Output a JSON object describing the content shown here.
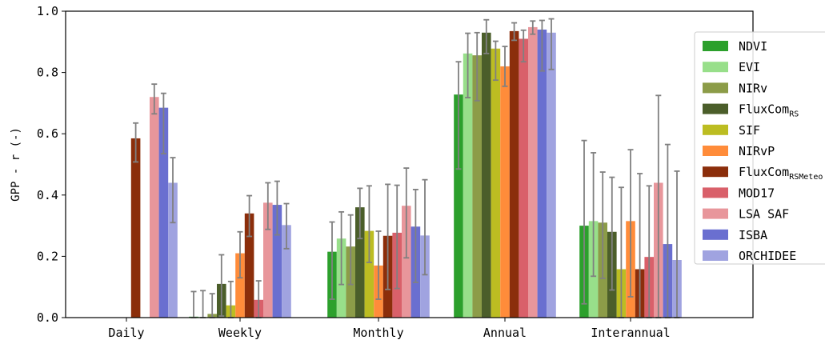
{
  "chart_data": {
    "type": "bar",
    "title": "",
    "xlabel": "",
    "ylabel": "GPP - r (-)",
    "ylim": [
      0.0,
      1.0
    ],
    "yticks": [
      "0.0",
      "0.2",
      "0.4",
      "0.6",
      "0.8",
      "1.0"
    ],
    "categories": [
      "Daily",
      "Weekly",
      "Monthly",
      "Annual",
      "Interannual"
    ],
    "legend_position": "right",
    "series": [
      {
        "name": "NDVI",
        "legend_label": "NDVI",
        "color": "#2ca02c",
        "values": [
          null,
          0.003,
          0.215,
          0.728,
          0.3
        ],
        "err_low": [
          null,
          0.0,
          0.06,
          0.485,
          0.045
        ],
        "err_high": [
          null,
          0.085,
          0.312,
          0.835,
          0.578
        ]
      },
      {
        "name": "EVI",
        "legend_label": "EVI",
        "color": "#98df8a",
        "values": [
          null,
          0.002,
          0.258,
          0.862,
          0.315
        ],
        "err_low": [
          null,
          0.0,
          0.108,
          0.718,
          0.135
        ],
        "err_high": [
          null,
          0.088,
          0.345,
          0.928,
          0.538
        ]
      },
      {
        "name": "NIRv",
        "legend_label": "NIRv",
        "color": "#8c9c48",
        "values": [
          null,
          0.012,
          0.232,
          0.856,
          0.31
        ],
        "err_low": [
          null,
          0.0,
          0.108,
          0.708,
          0.128
        ],
        "err_high": [
          null,
          0.078,
          0.335,
          0.93,
          0.475
        ]
      },
      {
        "name": "FluxComRS",
        "legend_label": "FluxCom",
        "legend_sub": "RS",
        "color": "#4b5e2a",
        "values": [
          null,
          0.11,
          0.36,
          0.93,
          0.28
        ],
        "err_low": [
          null,
          0.005,
          0.258,
          0.862,
          0.09
        ],
        "err_high": [
          null,
          0.205,
          0.422,
          0.972,
          0.458
        ]
      },
      {
        "name": "SIF",
        "legend_label": "SIF",
        "color": "#bcbd22",
        "values": [
          null,
          0.04,
          0.283,
          0.878,
          0.158
        ],
        "err_low": [
          null,
          0.0,
          0.18,
          0.775,
          0.0
        ],
        "err_high": [
          null,
          0.118,
          0.43,
          0.902,
          0.425
        ]
      },
      {
        "name": "NIRvP",
        "legend_label": "NIRvP",
        "color": "#ff8c3a",
        "values": [
          null,
          0.21,
          0.17,
          0.82,
          0.315
        ],
        "err_low": [
          null,
          0.13,
          0.06,
          0.755,
          0.068
        ],
        "err_high": [
          null,
          0.28,
          0.282,
          0.885,
          0.548
        ]
      },
      {
        "name": "FluxComRSMeteo",
        "legend_label": "FluxCom",
        "legend_sub": "RSMeteo",
        "color": "#8b2e0b",
        "values": [
          0.585,
          0.34,
          0.267,
          0.935,
          0.158
        ],
        "err_low": [
          0.508,
          0.265,
          0.092,
          0.905,
          0.0
        ],
        "err_high": [
          0.635,
          0.398,
          0.435,
          0.962,
          0.47
        ]
      },
      {
        "name": "MOD17",
        "legend_label": "MOD17",
        "color": "#d9606a",
        "values": [
          null,
          0.058,
          0.277,
          0.91,
          0.198
        ],
        "err_low": [
          null,
          0.0,
          0.095,
          0.835,
          0.0
        ],
        "err_high": [
          null,
          0.12,
          0.432,
          0.938,
          0.43
        ]
      },
      {
        "name": "LSA SAF",
        "legend_label": "LSA SAF",
        "color": "#e8969b",
        "values": [
          0.72,
          0.375,
          0.365,
          0.948,
          0.44
        ],
        "err_low": [
          0.665,
          0.288,
          0.195,
          0.925,
          0.0
        ],
        "err_high": [
          0.762,
          0.44,
          0.488,
          0.968,
          0.725
        ]
      },
      {
        "name": "ISBA",
        "legend_label": "ISBA",
        "color": "#6a6fd0",
        "values": [
          0.685,
          0.368,
          0.297,
          0.94,
          0.24
        ],
        "err_low": [
          0.535,
          0.27,
          0.115,
          0.805,
          0.0
        ],
        "err_high": [
          0.732,
          0.445,
          0.418,
          0.97,
          0.565
        ]
      },
      {
        "name": "ORCHIDEE",
        "legend_label": "ORCHIDEE",
        "color": "#a0a3e0",
        "values": [
          0.44,
          0.302,
          0.268,
          0.93,
          0.188
        ],
        "err_low": [
          0.31,
          0.225,
          0.14,
          0.81,
          0.0
        ],
        "err_high": [
          0.522,
          0.372,
          0.45,
          0.975,
          0.478
        ]
      }
    ]
  }
}
